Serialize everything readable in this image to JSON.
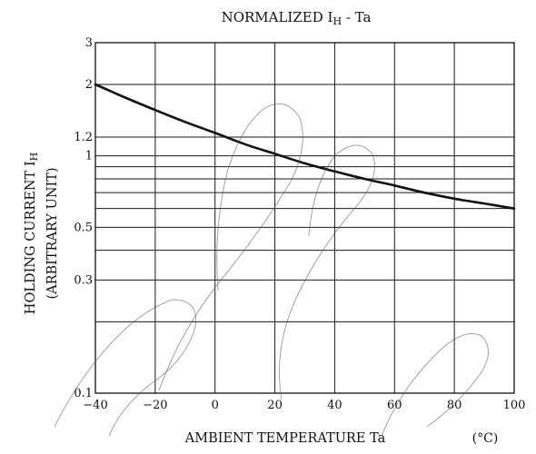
{
  "chart_data": {
    "type": "line",
    "title_main": "NORMALIZED I",
    "title_sub": "H",
    "title_rest": " - Ta",
    "xlabel": "AMBIENT TEMPERATURE Ta",
    "xunit": "(°C)",
    "ylabel_line1_main": "HOLDING CURRENT   I",
    "ylabel_line1_sub": "H",
    "ylabel_line2": "(ARBITRARY UNIT)",
    "xlim": [
      -40,
      100
    ],
    "ylim": [
      0.1,
      3
    ],
    "yscale": "log",
    "grid": true,
    "x_ticks": [
      -40,
      -20,
      0,
      20,
      40,
      60,
      80,
      100
    ],
    "x_tick_labels": [
      "−40",
      "−20",
      "0",
      "20",
      "40",
      "60",
      "80",
      "100"
    ],
    "y_tick_values": [
      3,
      2,
      1.2,
      1,
      0.5,
      0.3,
      0.1
    ],
    "y_tick_labels": [
      "3",
      "2",
      "1.2",
      "1",
      "0.5",
      "0.3",
      "0.1"
    ],
    "y_gridlines": [
      3,
      2,
      1.2,
      1,
      0.9,
      0.8,
      0.7,
      0.6,
      0.5,
      0.4,
      0.3,
      0.2,
      0.1
    ],
    "series": [
      {
        "x": [
          -40,
          -30,
          -20,
          -10,
          0,
          10,
          20,
          30,
          40,
          50,
          60,
          70,
          80,
          90,
          100
        ],
        "y": [
          2.0,
          1.76,
          1.56,
          1.39,
          1.25,
          1.12,
          1.02,
          0.93,
          0.86,
          0.8,
          0.75,
          0.7,
          0.66,
          0.63,
          0.6
        ]
      }
    ]
  }
}
